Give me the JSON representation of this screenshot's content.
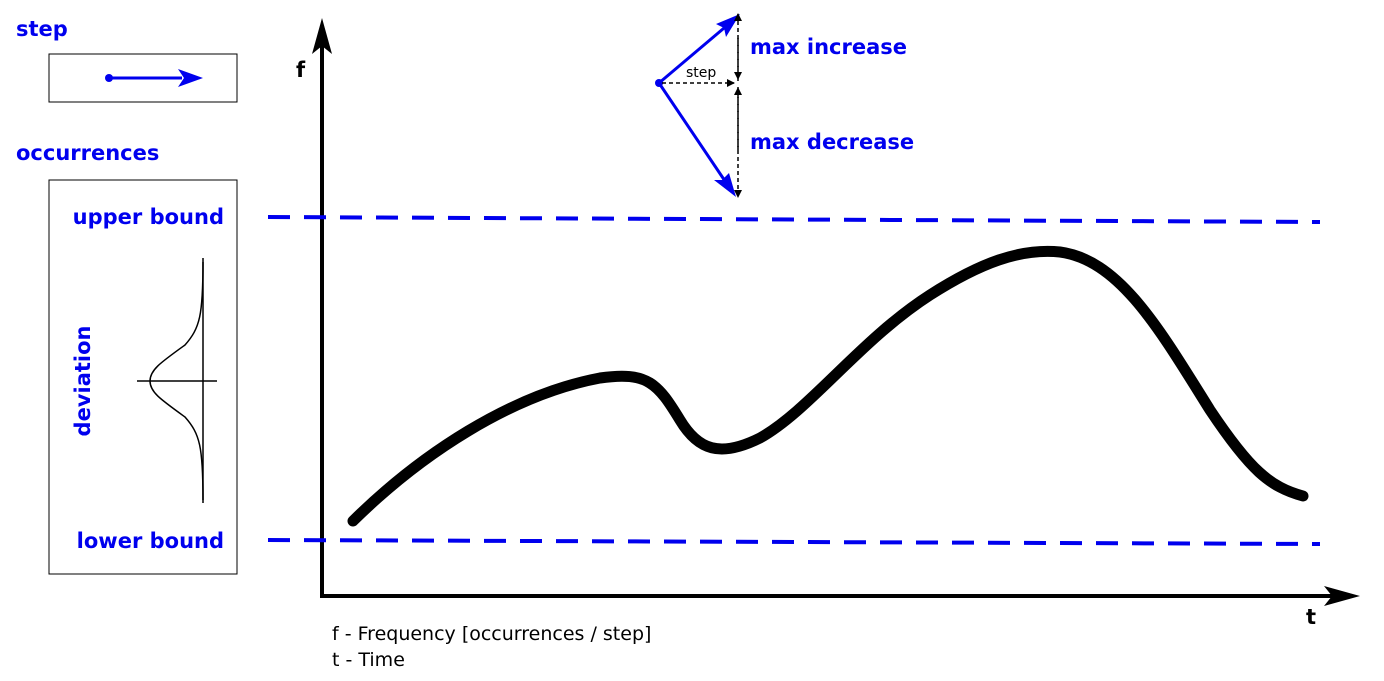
{
  "colors": {
    "accent": "#0000ee",
    "ink": "#000000"
  },
  "labels": {
    "step": "step",
    "occurrences": "occurrences",
    "upper_bound": "upper bound",
    "lower_bound": "lower bound",
    "deviation": "deviation",
    "max_increase": "max increase",
    "max_decrease": "max decrease",
    "step_small": "step",
    "f_axis": "f",
    "t_axis": "t"
  },
  "legend": {
    "line1": "f - Frequency [occurrences / step]",
    "line2": "t - Time"
  },
  "icons": {
    "step_arrow": "right-arrow-icon",
    "distribution": "bell-curve-icon"
  }
}
